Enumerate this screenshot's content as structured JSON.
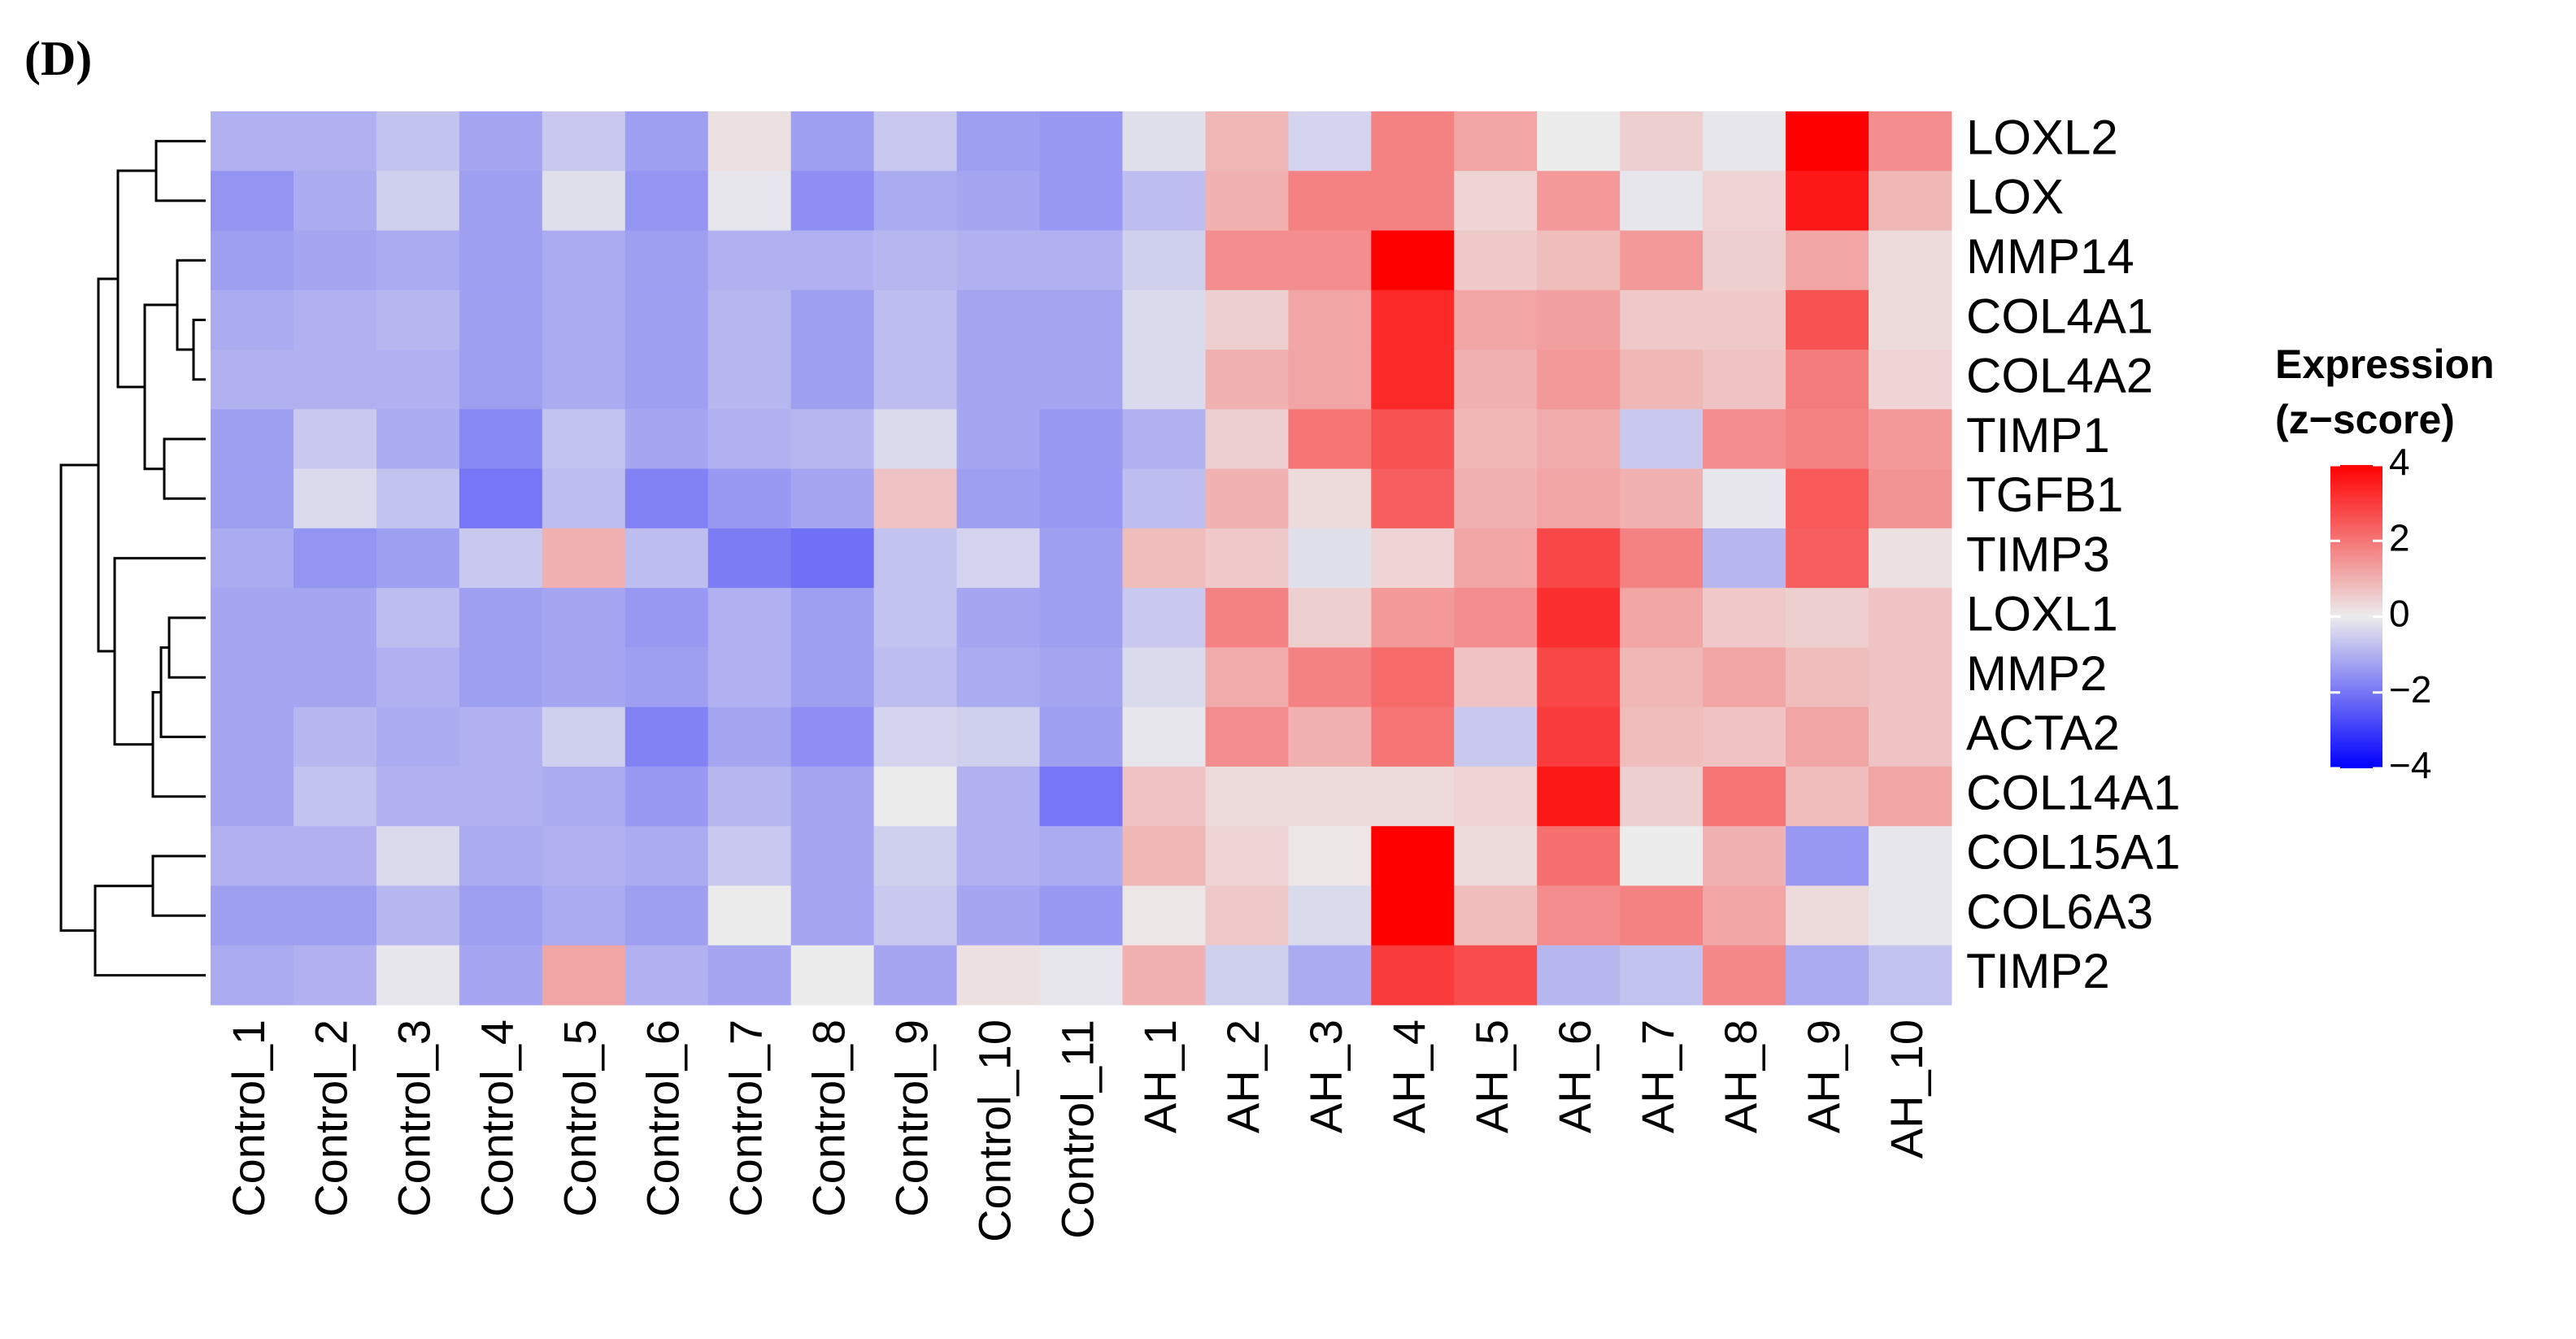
{
  "chart_data": {
    "type": "heatmap",
    "panel_label": "(D)",
    "legend_title": [
      "Expression",
      "(z−score)"
    ],
    "rows": [
      "LOXL2",
      "LOX",
      "MMP14",
      "COL4A1",
      "COL4A2",
      "TIMP1",
      "TGFB1",
      "TIMP3",
      "LOXL1",
      "MMP2",
      "ACTA2",
      "COL14A1",
      "COL15A1",
      "COL6A3",
      "TIMP2"
    ],
    "columns": [
      "Control_1",
      "Control_2",
      "Control_3",
      "Control_4",
      "Control_5",
      "Control_6",
      "Control_7",
      "Control_8",
      "Control_9",
      "Control_10",
      "Control_11",
      "AH_1",
      "AH_2",
      "AH_3",
      "AH_4",
      "AH_5",
      "AH_6",
      "AH_7",
      "AH_8",
      "AH_9",
      "AH_10"
    ],
    "values": [
      [
        -1,
        -1,
        -0.7,
        -1.2,
        -0.6,
        -1.3,
        0.2,
        -1.3,
        -0.6,
        -1.3,
        -1.4,
        -0.2,
        0.9,
        -0.4,
        1.8,
        1.2,
        0,
        0.5,
        -0.1,
        4,
        1.6
      ],
      [
        -1.5,
        -1.1,
        -0.5,
        -1.3,
        -0.2,
        -1.5,
        -0.1,
        -1.6,
        -1.1,
        -1.2,
        -1.4,
        -0.8,
        1,
        1.8,
        1.8,
        0.4,
        1.4,
        -0.1,
        0.4,
        3.6,
        0.9
      ],
      [
        -1.3,
        -1.2,
        -1.1,
        -1.3,
        -1.1,
        -1.3,
        -1,
        -1,
        -0.9,
        -1,
        -1,
        -0.5,
        1.6,
        1.6,
        4,
        0.6,
        0.8,
        1.4,
        0.5,
        1.2,
        0.3
      ],
      [
        -1.1,
        -1,
        -0.9,
        -1.3,
        -1.1,
        -1.3,
        -0.9,
        -1.3,
        -0.8,
        -1.2,
        -1.2,
        -0.3,
        0.5,
        1.2,
        3.3,
        1.2,
        1.3,
        0.6,
        0.6,
        2.6,
        0.3
      ],
      [
        -1,
        -1,
        -1,
        -1.3,
        -1.1,
        -1.3,
        -0.9,
        -1.3,
        -0.8,
        -1.2,
        -1.2,
        -0.3,
        1,
        1.2,
        3.3,
        1,
        1.4,
        0.9,
        0.7,
        1.9,
        0.4
      ],
      [
        -1.3,
        -0.6,
        -1.1,
        -1.7,
        -0.7,
        -1.2,
        -1,
        -0.9,
        -0.3,
        -1.2,
        -1.4,
        -1,
        0.5,
        2,
        2.6,
        0.9,
        1.1,
        -0.6,
        1.6,
        1.8,
        1.4
      ],
      [
        -1.3,
        -0.3,
        -0.7,
        -2,
        -0.8,
        -1.8,
        -1.4,
        -1.2,
        0.7,
        -1.3,
        -1.4,
        -0.8,
        1,
        0.3,
        2.4,
        1,
        1.2,
        1,
        -0.1,
        2.5,
        1.5
      ],
      [
        -1.1,
        -1.5,
        -1.3,
        -0.6,
        1,
        -0.8,
        -1.9,
        -2.1,
        -0.7,
        -0.4,
        -1.3,
        0.8,
        0.6,
        -0.2,
        0.4,
        1.2,
        2.8,
        1.8,
        -0.9,
        2.4,
        0.2
      ],
      [
        -1.2,
        -1.2,
        -0.8,
        -1.3,
        -1.2,
        -1.4,
        -1,
        -1.3,
        -0.7,
        -1.2,
        -1.3,
        -0.6,
        1.8,
        0.5,
        1.4,
        1.6,
        3.2,
        1.2,
        0.6,
        0.5,
        0.7
      ],
      [
        -1.2,
        -1.2,
        -1,
        -1.3,
        -1.2,
        -1.3,
        -1,
        -1.3,
        -0.8,
        -1.1,
        -1.2,
        -0.3,
        1.1,
        1.8,
        2.2,
        0.7,
        2.8,
        0.9,
        1.2,
        0.8,
        0.7
      ],
      [
        -1.2,
        -0.9,
        -1.1,
        -1,
        -0.5,
        -1.8,
        -1.2,
        -1.6,
        -0.4,
        -0.5,
        -1.3,
        -0.1,
        1.6,
        1,
        2,
        -0.6,
        3,
        0.8,
        0.7,
        1.2,
        0.7
      ],
      [
        -1.2,
        -0.7,
        -1,
        -1,
        -1.1,
        -1.4,
        -0.9,
        -1.2,
        0,
        -1,
        -2,
        0.7,
        0.3,
        0.3,
        0.3,
        0.4,
        3.6,
        0.5,
        2,
        0.8,
        1.2
      ],
      [
        -1,
        -1,
        -0.3,
        -1.1,
        -1,
        -1.1,
        -0.6,
        -1.2,
        -0.5,
        -1,
        -1.1,
        0.9,
        0.4,
        0.1,
        4,
        0.3,
        2.1,
        0,
        1,
        -1.4,
        -0.1
      ],
      [
        -1.3,
        -1.3,
        -0.9,
        -1.3,
        -1.1,
        -1.3,
        0,
        -1.2,
        -0.6,
        -1.2,
        -1.4,
        0.1,
        0.6,
        -0.3,
        4,
        0.8,
        1.6,
        1.8,
        1.2,
        0.3,
        -0.1
      ],
      [
        -1.1,
        -1,
        -0.1,
        -1.2,
        1.2,
        -1,
        -1.2,
        0,
        -1.2,
        0.2,
        -0.1,
        1,
        -0.5,
        -1.1,
        3,
        2.7,
        -0.9,
        -0.7,
        1.7,
        -1.1,
        -0.7
      ]
    ],
    "zlim": [
      -4,
      4
    ],
    "zticks": [
      4,
      2,
      0,
      {
        "value": -2,
        "label": "−2"
      },
      {
        "value": -4,
        "label": "−4"
      }
    ],
    "colors": {
      "low": "#0000ff",
      "mid": "#ececec",
      "high": "#ff0000"
    }
  }
}
